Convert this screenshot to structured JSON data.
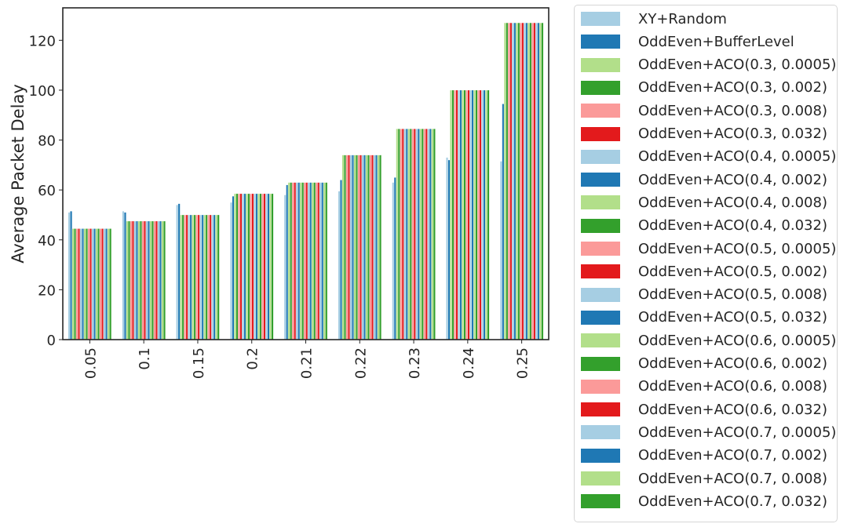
{
  "chart_data": {
    "type": "bar",
    "title": "",
    "xlabel": "",
    "ylabel": "Average Packet Delay",
    "ylim": [
      0,
      133
    ],
    "yticks": [
      0,
      20,
      40,
      60,
      80,
      100,
      120
    ],
    "grid": false,
    "legend_position": "outside-right",
    "categories": [
      "0.05",
      "0.1",
      "0.15",
      "0.2",
      "0.21",
      "0.22",
      "0.23",
      "0.24",
      "0.25"
    ],
    "series": [
      {
        "name": "XY+Random",
        "color": "#a6cee3",
        "values": [
          51,
          51.5,
          54,
          55,
          58,
          59.5,
          63,
          73,
          71.5
        ]
      },
      {
        "name": "OddEven+BufferLevel",
        "color": "#1f78b4",
        "values": [
          51.5,
          51,
          54.5,
          57.5,
          62,
          64,
          65,
          72,
          94.5
        ]
      },
      {
        "name": "OddEven+ACO(0.3, 0.0005)",
        "color": "#b2df8a",
        "values": [
          44.5,
          47.5,
          50,
          58.5,
          63,
          74,
          84.5,
          100,
          127
        ]
      },
      {
        "name": "OddEven+ACO(0.3, 0.002)",
        "color": "#33a02c",
        "values": [
          44.5,
          47.5,
          50,
          58.5,
          63,
          74,
          84.5,
          100,
          127
        ]
      },
      {
        "name": "OddEven+ACO(0.3, 0.008)",
        "color": "#fb9a99",
        "values": [
          44.5,
          47.5,
          50,
          58.5,
          63,
          74,
          84.5,
          100,
          127
        ]
      },
      {
        "name": "OddEven+ACO(0.3, 0.032)",
        "color": "#e31a1c",
        "values": [
          44.5,
          47.5,
          50,
          58.5,
          63,
          74,
          84.5,
          100,
          127
        ]
      },
      {
        "name": "OddEven+ACO(0.4, 0.0005)",
        "color": "#a6cee3",
        "values": [
          44.5,
          47.5,
          50,
          58.5,
          63,
          74,
          84.5,
          100,
          127
        ]
      },
      {
        "name": "OddEven+ACO(0.4, 0.002)",
        "color": "#1f78b4",
        "values": [
          44.5,
          47.5,
          50,
          58.5,
          63,
          74,
          84.5,
          100,
          127
        ]
      },
      {
        "name": "OddEven+ACO(0.4, 0.008)",
        "color": "#b2df8a",
        "values": [
          44.5,
          47.5,
          50,
          58.5,
          63,
          74,
          84.5,
          100,
          127
        ]
      },
      {
        "name": "OddEven+ACO(0.4, 0.032)",
        "color": "#33a02c",
        "values": [
          44.5,
          47.5,
          50,
          58.5,
          63,
          74,
          84.5,
          100,
          127
        ]
      },
      {
        "name": "OddEven+ACO(0.5, 0.0005)",
        "color": "#fb9a99",
        "values": [
          44.5,
          47.5,
          50,
          58.5,
          63,
          74,
          84.5,
          100,
          127
        ]
      },
      {
        "name": "OddEven+ACO(0.5, 0.002)",
        "color": "#e31a1c",
        "values": [
          44.5,
          47.5,
          50,
          58.5,
          63,
          74,
          84.5,
          100,
          127
        ]
      },
      {
        "name": "OddEven+ACO(0.5, 0.008)",
        "color": "#a6cee3",
        "values": [
          44.5,
          47.5,
          50,
          58.5,
          63,
          74,
          84.5,
          100,
          127
        ]
      },
      {
        "name": "OddEven+ACO(0.5, 0.032)",
        "color": "#1f78b4",
        "values": [
          44.5,
          47.5,
          50,
          58.5,
          63,
          74,
          84.5,
          100,
          127
        ]
      },
      {
        "name": "OddEven+ACO(0.6, 0.0005)",
        "color": "#b2df8a",
        "values": [
          44.5,
          47.5,
          50,
          58.5,
          63,
          74,
          84.5,
          100,
          127
        ]
      },
      {
        "name": "OddEven+ACO(0.6, 0.002)",
        "color": "#33a02c",
        "values": [
          44.5,
          47.5,
          50,
          58.5,
          63,
          74,
          84.5,
          100,
          127
        ]
      },
      {
        "name": "OddEven+ACO(0.6, 0.008)",
        "color": "#fb9a99",
        "values": [
          44.5,
          47.5,
          50,
          58.5,
          63,
          74,
          84.5,
          100,
          127
        ]
      },
      {
        "name": "OddEven+ACO(0.6, 0.032)",
        "color": "#e31a1c",
        "values": [
          44.5,
          47.5,
          50,
          58.5,
          63,
          74,
          84.5,
          100,
          127
        ]
      },
      {
        "name": "OddEven+ACO(0.7, 0.0005)",
        "color": "#a6cee3",
        "values": [
          44.5,
          47.5,
          50,
          58.5,
          63,
          74,
          84.5,
          100,
          127
        ]
      },
      {
        "name": "OddEven+ACO(0.7, 0.002)",
        "color": "#1f78b4",
        "values": [
          44.5,
          47.5,
          50,
          58.5,
          63,
          74,
          84.5,
          100,
          127
        ]
      },
      {
        "name": "OddEven+ACO(0.7, 0.008)",
        "color": "#b2df8a",
        "values": [
          44.5,
          47.5,
          50,
          58.5,
          63,
          74,
          84.5,
          100,
          127
        ]
      },
      {
        "name": "OddEven+ACO(0.7, 0.032)",
        "color": "#33a02c",
        "values": [
          44.5,
          47.5,
          50,
          58.5,
          63,
          74,
          84.5,
          100,
          127
        ]
      }
    ]
  }
}
